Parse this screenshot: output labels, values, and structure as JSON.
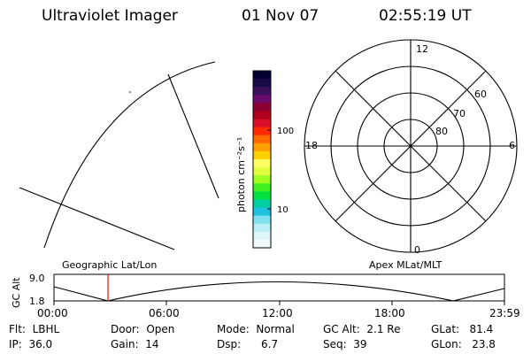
{
  "header": {
    "instrument": "Ultraviolet Imager",
    "date": "01 Nov 07",
    "time": "02:55:19 UT"
  },
  "colorbar": {
    "unit_label": "photon cm⁻²s⁻¹",
    "ticks": [
      "100",
      "10"
    ],
    "colors": [
      "#000033",
      "#1a0a46",
      "#3a0f5c",
      "#6a0a6a",
      "#8b0033",
      "#b00020",
      "#d90f2a",
      "#ff2a00",
      "#ff6a00",
      "#ffa000",
      "#ffd000",
      "#ffff66",
      "#e0ff40",
      "#a0ff20",
      "#40f020",
      "#00e040",
      "#00d0a0",
      "#20c0e0",
      "#80e0f0",
      "#b8eef5",
      "#ddf6fa",
      "#f0fafc"
    ]
  },
  "dial": {
    "mlt_labels": [
      "12",
      "18",
      "6",
      "0"
    ],
    "mlat_labels": [
      "60",
      "70",
      "80"
    ]
  },
  "timeline": {
    "axis_label": "GC Alt",
    "y_top": "9.0",
    "y_bottom": "1.8",
    "left_title": "Geographic Lat/Lon",
    "right_title": "Apex MLat/MLT",
    "time_ticks": [
      "00:00",
      "06:00",
      "12:00",
      "18:00",
      "23:59"
    ],
    "marker_color": "#ff0000"
  },
  "info": {
    "flt": "Flt:  LBHL",
    "ip": "IP:  36.0",
    "door": "Door:  Open",
    "gain": "Gain:  14",
    "mode": "Mode:  Normal",
    "dsp": "Dsp:      6.7",
    "gc_alt": "GC Alt:  2.1 Re",
    "seq": "Seq:  39",
    "glat": "GLat:   81.4",
    "glon": "GLon:   23.8"
  }
}
